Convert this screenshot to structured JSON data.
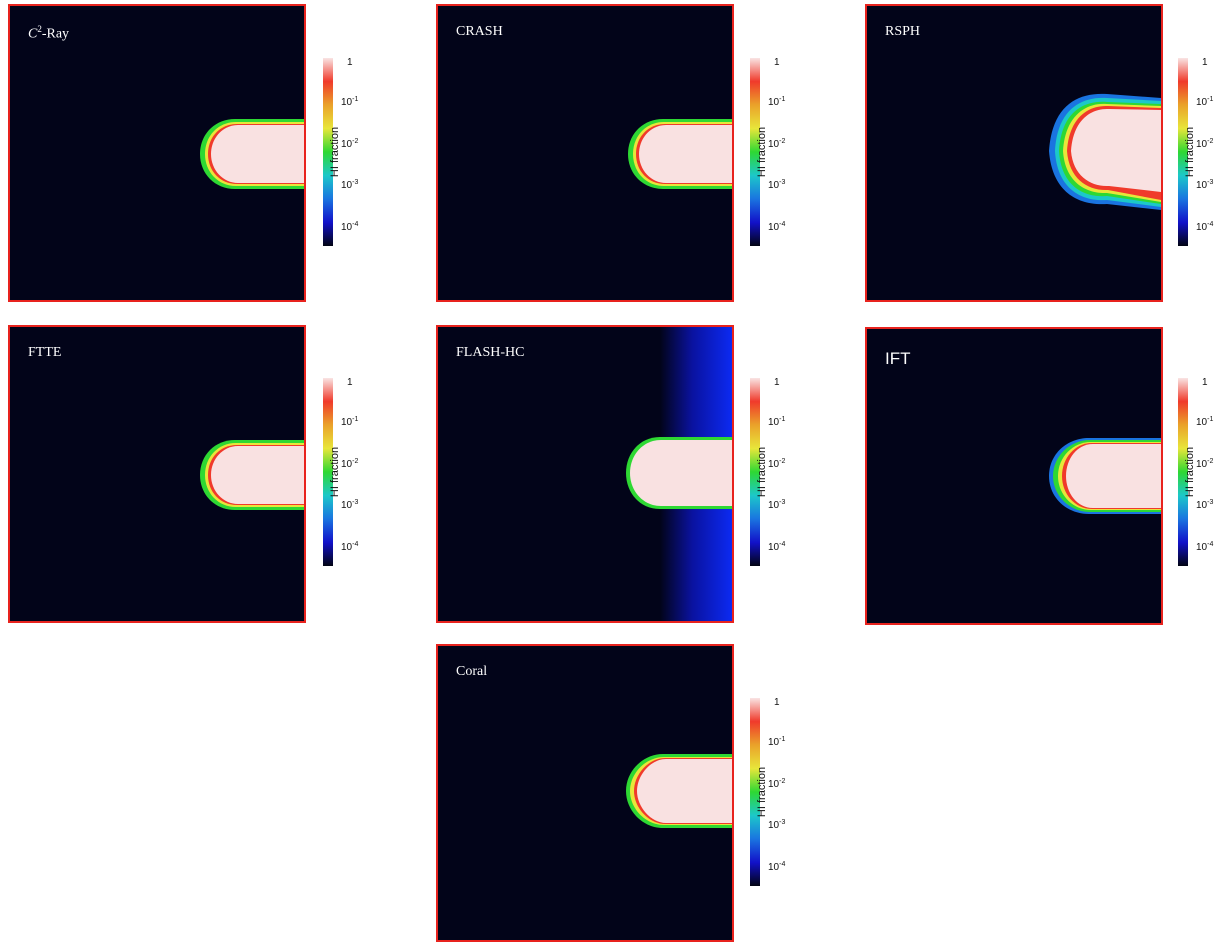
{
  "chart_data": {
    "type": "heatmap",
    "colorbar": {
      "label": "HI fraction",
      "scale": "log",
      "ticks": [
        {
          "base": "1",
          "exp": ""
        },
        {
          "base": "10",
          "exp": "-1"
        },
        {
          "base": "10",
          "exp": "-2"
        },
        {
          "base": "10",
          "exp": "-3"
        },
        {
          "base": "10",
          "exp": "-4"
        }
      ],
      "colors": [
        "#f9e4e4",
        "#f03a2b",
        "#eaa22a",
        "#e8e63a",
        "#2ed833",
        "#1cc8c9",
        "#1a74e0",
        "#1211c9",
        "#020412"
      ]
    },
    "panels": [
      {
        "id": "c2ray",
        "title_prefix": "C",
        "title_sup": "2",
        "title_rest": "-Ray",
        "feature": "shadow"
      },
      {
        "id": "crash",
        "title": "CRASH",
        "feature": "shadow"
      },
      {
        "id": "rsph",
        "title": "RSPH",
        "feature": "shadow-wide"
      },
      {
        "id": "ftte",
        "title": "FTTE",
        "feature": "shadow"
      },
      {
        "id": "flash",
        "title": "FLASH-HC",
        "feature": "shadow-blue-edge"
      },
      {
        "id": "ift",
        "title": "IFT",
        "feature": "shadow"
      },
      {
        "id": "coral",
        "title": "Coral",
        "feature": "shadow"
      }
    ]
  }
}
